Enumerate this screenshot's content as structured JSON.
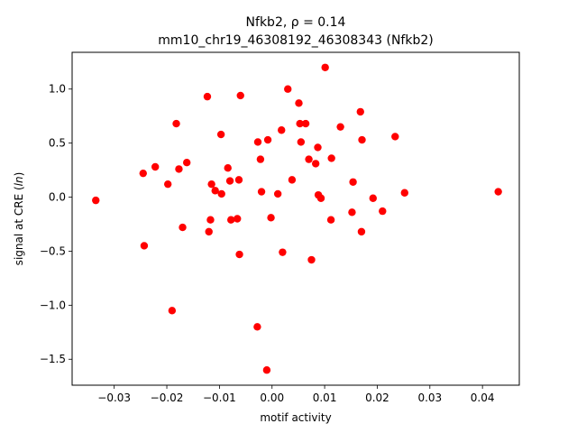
{
  "chart_data": {
    "type": "scatter",
    "title": "Nfkb2, ρ = 0.14",
    "subtitle": "mm10_chr19_46308192_46308343 (Nfkb2)",
    "xlabel": "motif activity",
    "ylabel": "signal at CRE (ln)",
    "xlim": [
      -0.038,
      0.047
    ],
    "ylim": [
      -1.74,
      1.34
    ],
    "x_ticks": [
      -0.03,
      -0.02,
      -0.01,
      0.0,
      0.01,
      0.02,
      0.03,
      0.04
    ],
    "x_tick_labels": [
      "−0.03",
      "−0.02",
      "−0.01",
      "0.00",
      "0.01",
      "0.02",
      "0.03",
      "0.04"
    ],
    "y_ticks": [
      -1.5,
      -1.0,
      -0.5,
      0.0,
      0.5,
      1.0
    ],
    "y_tick_labels": [
      "−1.5",
      "−1.0",
      "−0.5",
      "0.0",
      "0.5",
      "1.0"
    ],
    "grid": false,
    "marker_color": "#ff0000",
    "points": [
      {
        "x": -0.0335,
        "y": -0.03
      },
      {
        "x": -0.0245,
        "y": 0.22
      },
      {
        "x": -0.0243,
        "y": -0.45
      },
      {
        "x": -0.0222,
        "y": 0.28
      },
      {
        "x": -0.0198,
        "y": 0.12
      },
      {
        "x": -0.019,
        "y": -1.05
      },
      {
        "x": -0.0182,
        "y": 0.68
      },
      {
        "x": -0.0177,
        "y": 0.26
      },
      {
        "x": -0.017,
        "y": -0.28
      },
      {
        "x": -0.0162,
        "y": 0.32
      },
      {
        "x": -0.0123,
        "y": 0.93
      },
      {
        "x": -0.012,
        "y": -0.32
      },
      {
        "x": -0.0117,
        "y": -0.21
      },
      {
        "x": -0.0115,
        "y": 0.12
      },
      {
        "x": -0.0108,
        "y": 0.06
      },
      {
        "x": -0.0097,
        "y": 0.58
      },
      {
        "x": -0.0096,
        "y": 0.03
      },
      {
        "x": -0.0084,
        "y": 0.27
      },
      {
        "x": -0.008,
        "y": 0.15
      },
      {
        "x": -0.0078,
        "y": -0.21
      },
      {
        "x": -0.0066,
        "y": -0.2
      },
      {
        "x": -0.0063,
        "y": 0.16
      },
      {
        "x": -0.0062,
        "y": -0.53
      },
      {
        "x": -0.006,
        "y": 0.94
      },
      {
        "x": -0.0028,
        "y": -1.2
      },
      {
        "x": -0.0027,
        "y": 0.51
      },
      {
        "x": -0.0022,
        "y": 0.35
      },
      {
        "x": -0.002,
        "y": 0.05
      },
      {
        "x": -0.001,
        "y": -1.6
      },
      {
        "x": -0.0008,
        "y": 0.53
      },
      {
        "x": -0.0002,
        "y": -0.19
      },
      {
        "x": 0.0011,
        "y": 0.03
      },
      {
        "x": 0.0018,
        "y": 0.62
      },
      {
        "x": 0.002,
        "y": -0.51
      },
      {
        "x": 0.003,
        "y": 1.0
      },
      {
        "x": 0.0038,
        "y": 0.16
      },
      {
        "x": 0.0051,
        "y": 0.87
      },
      {
        "x": 0.0053,
        "y": 0.68
      },
      {
        "x": 0.0055,
        "y": 0.51
      },
      {
        "x": 0.0064,
        "y": 0.68
      },
      {
        "x": 0.007,
        "y": 0.35
      },
      {
        "x": 0.0075,
        "y": -0.58
      },
      {
        "x": 0.0083,
        "y": 0.31
      },
      {
        "x": 0.0087,
        "y": 0.46
      },
      {
        "x": 0.0088,
        "y": 0.02
      },
      {
        "x": 0.0093,
        "y": -0.01
      },
      {
        "x": 0.0101,
        "y": 1.2
      },
      {
        "x": 0.0112,
        "y": -0.21
      },
      {
        "x": 0.0113,
        "y": 0.36
      },
      {
        "x": 0.013,
        "y": 0.65
      },
      {
        "x": 0.0152,
        "y": -0.14
      },
      {
        "x": 0.0154,
        "y": 0.14
      },
      {
        "x": 0.0168,
        "y": 0.79
      },
      {
        "x": 0.017,
        "y": -0.32
      },
      {
        "x": 0.0171,
        "y": 0.53
      },
      {
        "x": 0.0192,
        "y": -0.01
      },
      {
        "x": 0.021,
        "y": -0.13
      },
      {
        "x": 0.0234,
        "y": 0.56
      },
      {
        "x": 0.0252,
        "y": 0.04
      },
      {
        "x": 0.043,
        "y": 0.05
      }
    ]
  }
}
